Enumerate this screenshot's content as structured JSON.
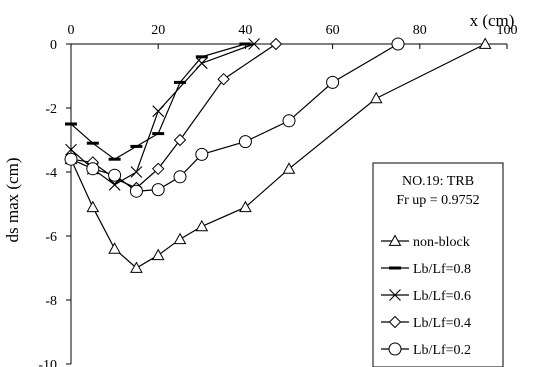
{
  "chart_data": {
    "type": "line",
    "xlabel": "x (cm)",
    "ylabel": "ds max (cm)",
    "xlim": [
      0,
      100
    ],
    "ylim": [
      -10,
      0
    ],
    "x_ticks": [
      "0",
      "20",
      "40",
      "60",
      "80",
      "100"
    ],
    "y_ticks": [
      "0",
      "-2",
      "-4",
      "-6",
      "-8",
      "-10"
    ],
    "grid": false,
    "x_axis_position": "top",
    "legend_placement": "bottom-right",
    "legend_title_lines": [
      "NO.19: TRB",
      "Fr up = 0.9752"
    ],
    "series": [
      {
        "name": "non-block",
        "marker": "triangle",
        "x": [
          0,
          5,
          10,
          15,
          20,
          25,
          30,
          40,
          50,
          70,
          95
        ],
        "y": [
          -3.6,
          -5.1,
          -6.4,
          -7.0,
          -6.6,
          -6.1,
          -5.7,
          -5.1,
          -3.9,
          -1.7,
          0
        ]
      },
      {
        "name": "Lb/Lf=0.8",
        "marker": "dash",
        "x": [
          0,
          5,
          10,
          15,
          20,
          25,
          30,
          40
        ],
        "y": [
          -2.5,
          -3.1,
          -3.6,
          -3.2,
          -2.8,
          -1.2,
          -0.4,
          0
        ]
      },
      {
        "name": "Lb/Lf=0.6",
        "marker": "x",
        "x": [
          0,
          5,
          10,
          15,
          20,
          30,
          42
        ],
        "y": [
          -3.3,
          -3.9,
          -4.4,
          -4.0,
          -2.1,
          -0.6,
          0
        ]
      },
      {
        "name": "Lb/Lf=0.4",
        "marker": "diamond",
        "x": [
          0,
          5,
          10,
          15,
          20,
          25,
          35,
          47
        ],
        "y": [
          -3.6,
          -3.7,
          -4.2,
          -4.5,
          -3.9,
          -3.0,
          -1.1,
          0
        ]
      },
      {
        "name": "Lb/Lf=0.2",
        "marker": "circle",
        "x": [
          0,
          5,
          10,
          15,
          20,
          25,
          30,
          40,
          50,
          60,
          75
        ],
        "y": [
          -3.6,
          -3.9,
          -4.1,
          -4.6,
          -4.55,
          -4.15,
          -3.45,
          -3.05,
          -2.4,
          -1.2,
          0
        ]
      }
    ]
  }
}
